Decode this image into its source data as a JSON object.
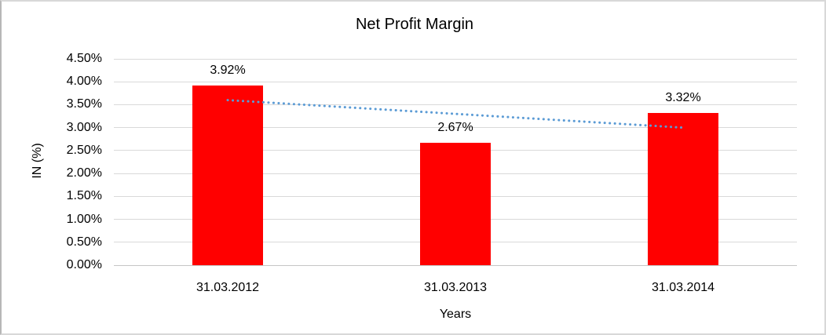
{
  "chart_data": {
    "type": "bar",
    "title": "Net Profit Margin",
    "xlabel": "Years",
    "ylabel": "IN (%)",
    "categories": [
      "31.03.2012",
      "31.03.2013",
      "31.03.2014"
    ],
    "values": [
      3.92,
      2.67,
      3.32
    ],
    "data_labels": [
      "3.92%",
      "2.67%",
      "3.32%"
    ],
    "yticks": [
      "4.50%",
      "4.00%",
      "3.50%",
      "3.00%",
      "2.50%",
      "2.00%",
      "1.50%",
      "1.00%",
      "0.50%",
      "0.00%"
    ],
    "ylim": [
      0,
      4.5
    ],
    "ytick_step": 0.5,
    "grid": true,
    "legend": false,
    "bar_color": "#ff0000",
    "background_color": "#ffffff",
    "gridline_color": "#d9d9d9",
    "trendline": {
      "type": "linear",
      "style": "dotted",
      "color": "#5b9bd5",
      "start_value": 3.6,
      "end_value": 3.0
    }
  }
}
